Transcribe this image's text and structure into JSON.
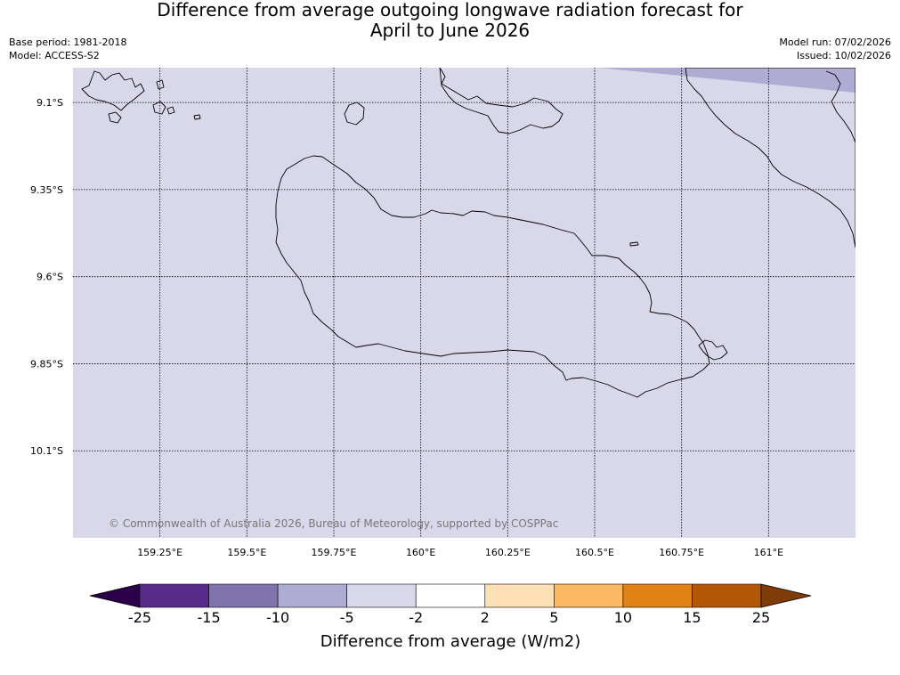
{
  "title": {
    "line1": "Difference from average outgoing longwave radiation forecast for",
    "line2": "April to June 2026"
  },
  "meta": {
    "base_period": "Base period: 1981-2018",
    "model": "Model: ACCESS-S2",
    "model_run": "Model run: 07/02/2026",
    "issued": "Issued: 10/02/2026"
  },
  "map": {
    "background_color": "#d8d8ea",
    "copyright": "© Commonwealth of Australia 2026, Bureau of Meteorology, supported by COSPPac",
    "longitudes": [
      159.25,
      159.5,
      159.75,
      160.0,
      160.25,
      160.5,
      160.75,
      161.0
    ],
    "lon_labels": [
      "159.25°E",
      "159.5°E",
      "159.75°E",
      "160°E",
      "160.25°E",
      "160.5°E",
      "160.75°E",
      "161°E"
    ],
    "latitudes": [
      -9.1,
      -9.35,
      -9.6,
      -9.85,
      -10.1
    ],
    "lat_labels": [
      "9.1°S",
      "9.35°S",
      "9.6°S",
      "9.85°S",
      "10.1°S"
    ],
    "lon_range": [
      159.0,
      161.25
    ],
    "lat_range": [
      -9.0,
      -10.35
    ],
    "anomaly_region": {
      "bin": "-10 to -5",
      "color": "#b0abd3"
    }
  },
  "colorbar": {
    "title": "Difference from average (W/m2)",
    "ticks": [
      "-25",
      "-15",
      "-10",
      "-5",
      "-2",
      "2",
      "5",
      "10",
      "15",
      "25"
    ],
    "colors": [
      "#582a8a",
      "#8073ae",
      "#b0abd3",
      "#d8d8ea",
      "#ffffff",
      "#fee0b6",
      "#fdb863",
      "#e08214",
      "#b35806"
    ],
    "under_color": "#2d004b",
    "over_color": "#7f3b08"
  }
}
